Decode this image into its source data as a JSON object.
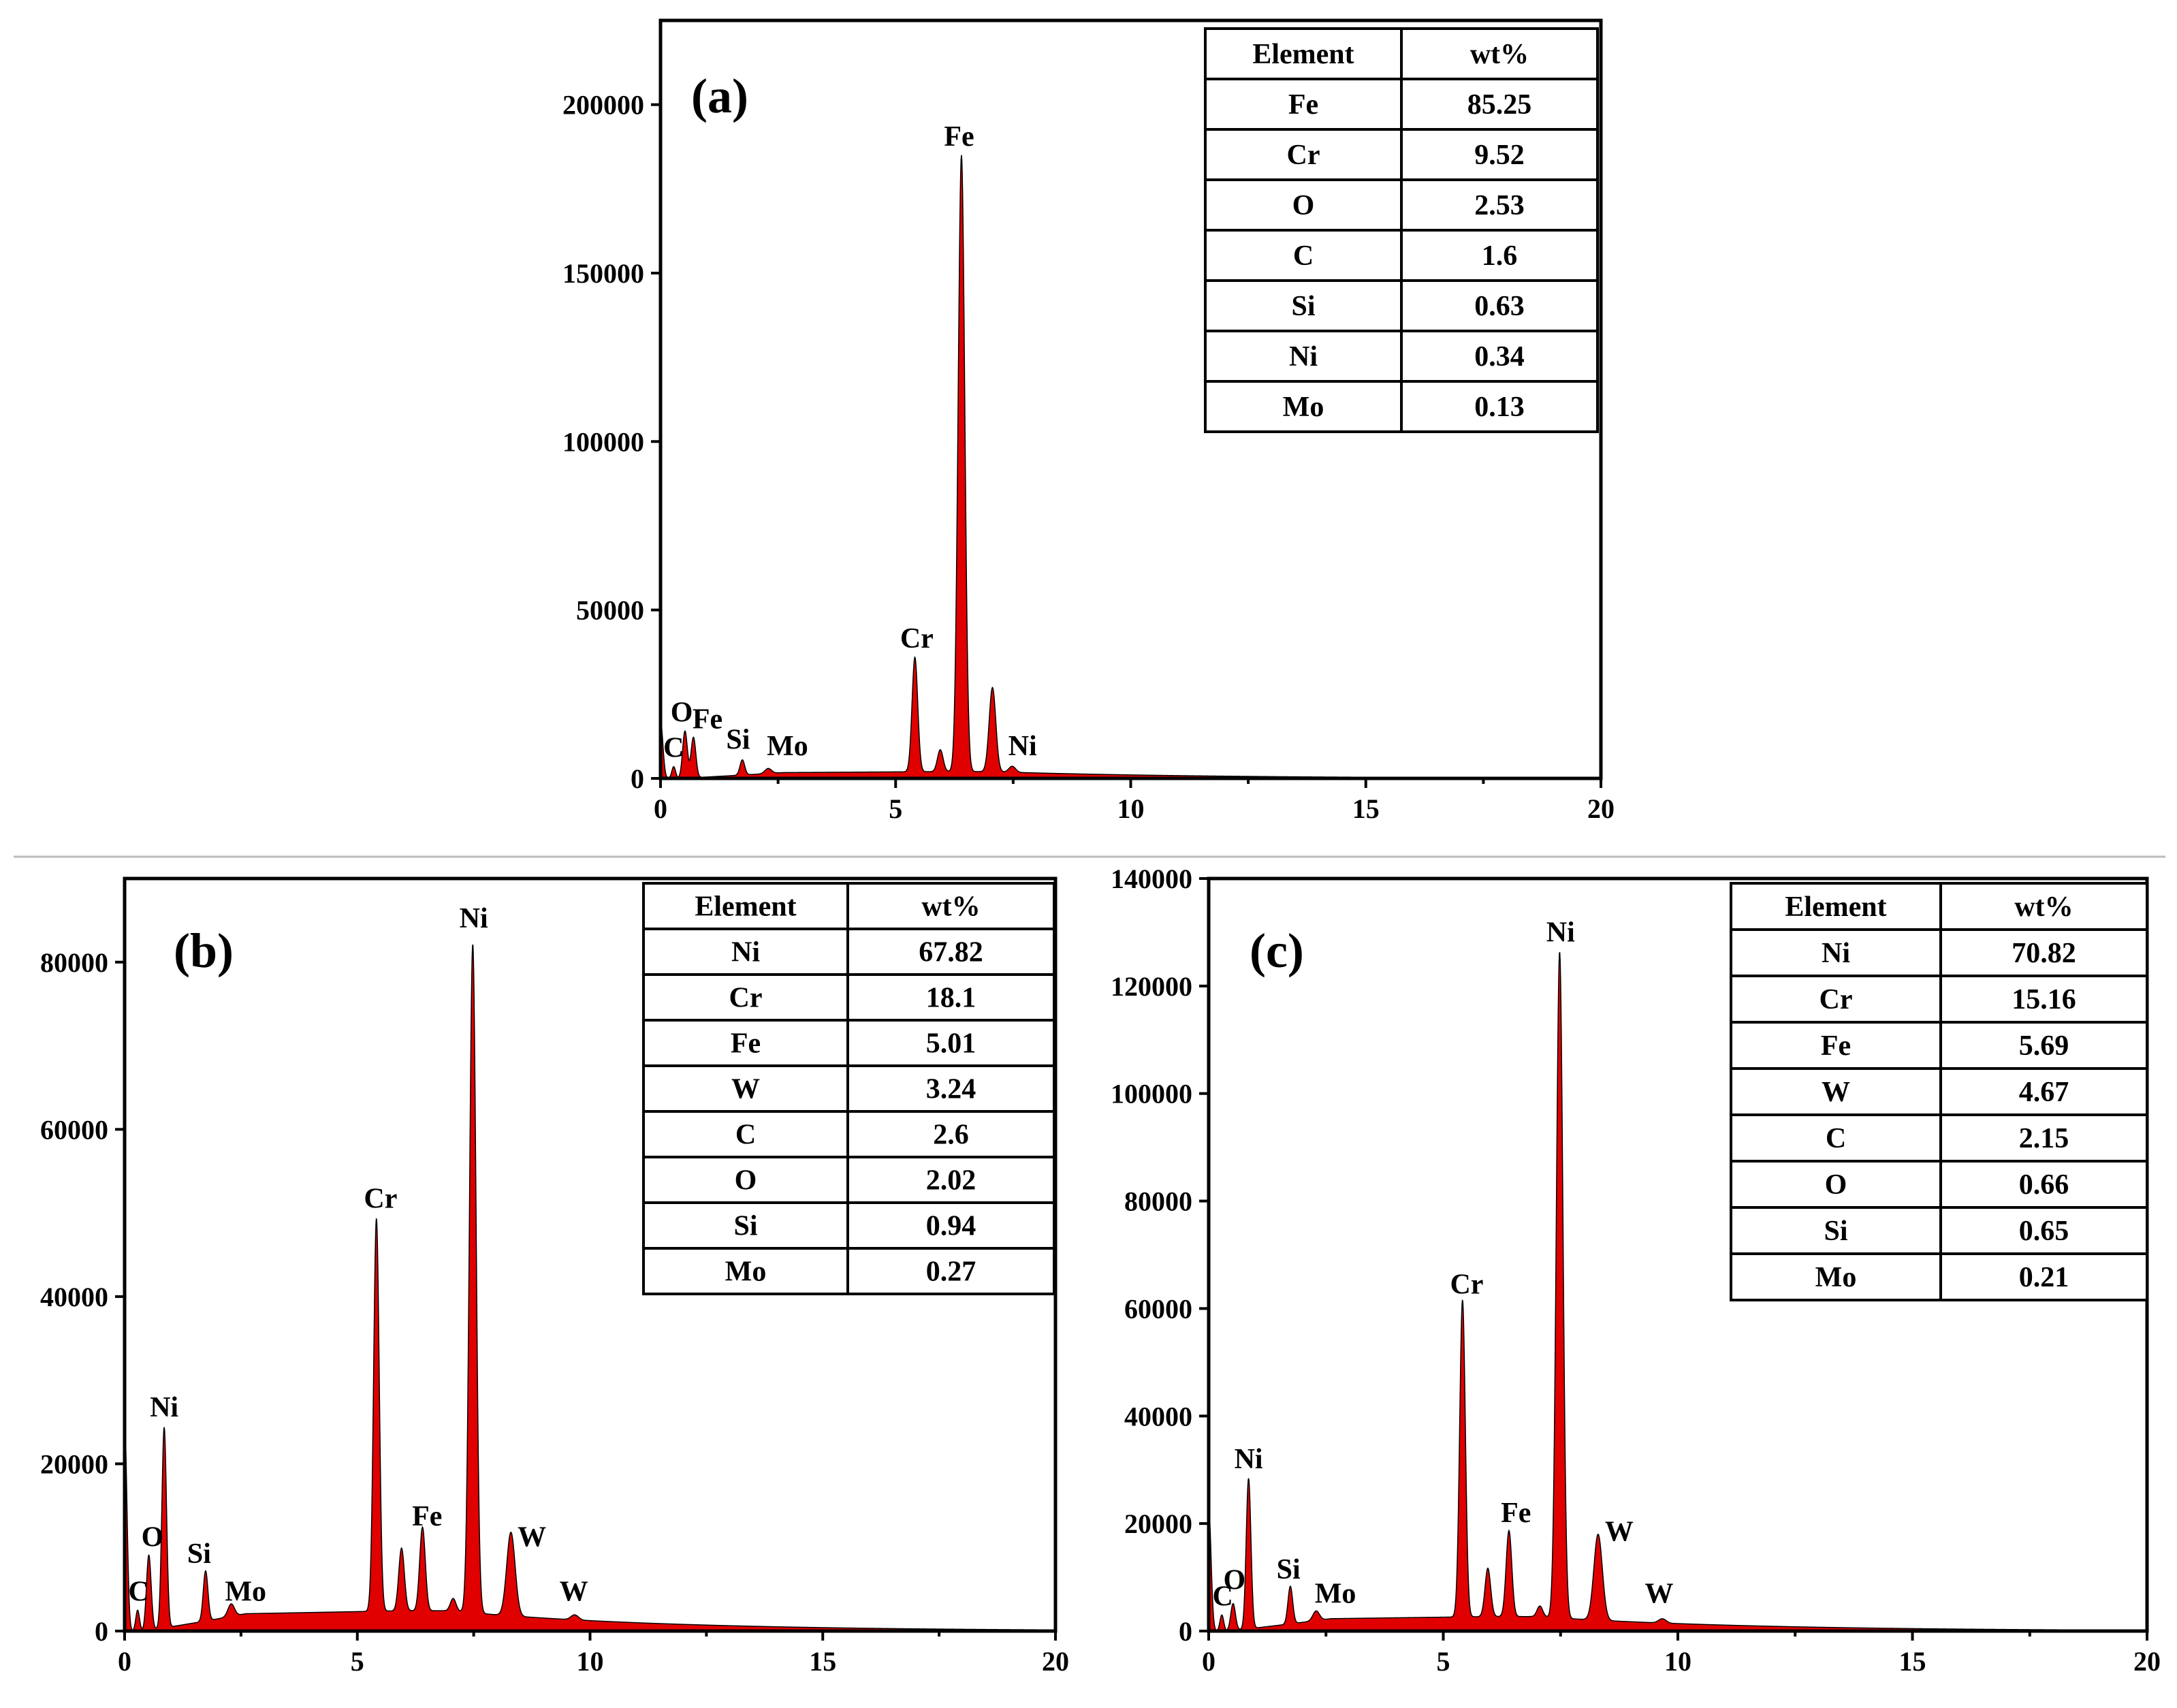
{
  "chart_data": [
    {
      "type": "area",
      "panel_label": "(a)",
      "xlim": [
        0,
        20
      ],
      "ylim": [
        0,
        225000
      ],
      "x_ticks": [
        0,
        5,
        10,
        15,
        20
      ],
      "y_ticks": [
        0,
        50000,
        100000,
        150000,
        200000
      ],
      "background": 1500,
      "fill_color": "#e00000",
      "peaks": [
        {
          "x": 0.0,
          "y": 17000,
          "w": 0.05
        },
        {
          "x": 0.28,
          "y": 3500,
          "w": 0.04
        },
        {
          "x": 0.52,
          "y": 14000,
          "w": 0.05
        },
        {
          "x": 0.7,
          "y": 12000,
          "w": 0.05
        },
        {
          "x": 1.74,
          "y": 4500,
          "w": 0.05
        },
        {
          "x": 2.29,
          "y": 1500,
          "w": 0.07
        },
        {
          "x": 5.41,
          "y": 34000,
          "w": 0.06
        },
        {
          "x": 5.95,
          "y": 6500,
          "w": 0.06
        },
        {
          "x": 6.4,
          "y": 183000,
          "w": 0.07
        },
        {
          "x": 7.06,
          "y": 25000,
          "w": 0.07
        },
        {
          "x": 7.48,
          "y": 1800,
          "w": 0.07
        }
      ],
      "peak_labels": [
        {
          "text": "C",
          "x": 0.28,
          "y": 3500
        },
        {
          "text": "O",
          "x": 0.45,
          "y": 14000
        },
        {
          "text": "Fe",
          "x": 1.0,
          "y": 12000
        },
        {
          "text": "Si",
          "x": 1.65,
          "y": 6000
        },
        {
          "text": "Mo",
          "x": 2.7,
          "y": 4000
        },
        {
          "text": "Cr",
          "x": 5.45,
          "y": 36000
        },
        {
          "text": "Fe",
          "x": 6.35,
          "y": 185000
        },
        {
          "text": "Ni",
          "x": 7.7,
          "y": 4000
        }
      ],
      "table": {
        "header": [
          "Element",
          "wt%"
        ],
        "rows": [
          [
            "Fe",
            "85.25"
          ],
          [
            "Cr",
            "9.52"
          ],
          [
            "O",
            "2.53"
          ],
          [
            "C",
            "1.6"
          ],
          [
            "Si",
            "0.63"
          ],
          [
            "Ni",
            "0.34"
          ],
          [
            "Mo",
            "0.13"
          ]
        ]
      }
    },
    {
      "type": "area",
      "panel_label": "(b)",
      "xlim": [
        0,
        20
      ],
      "ylim": [
        0,
        90000
      ],
      "x_ticks": [
        0,
        5,
        10,
        15,
        20
      ],
      "y_ticks": [
        0,
        20000,
        40000,
        60000,
        80000
      ],
      "background": 1800,
      "fill_color": "#e00000",
      "peaks": [
        {
          "x": 0.0,
          "y": 25000,
          "w": 0.05
        },
        {
          "x": 0.28,
          "y": 2500,
          "w": 0.04
        },
        {
          "x": 0.52,
          "y": 9000,
          "w": 0.05
        },
        {
          "x": 0.85,
          "y": 24000,
          "w": 0.05
        },
        {
          "x": 1.74,
          "y": 6000,
          "w": 0.05
        },
        {
          "x": 2.29,
          "y": 1500,
          "w": 0.07
        },
        {
          "x": 5.41,
          "y": 47000,
          "w": 0.06
        },
        {
          "x": 5.95,
          "y": 7500,
          "w": 0.06
        },
        {
          "x": 6.4,
          "y": 10000,
          "w": 0.06
        },
        {
          "x": 7.06,
          "y": 1500,
          "w": 0.06
        },
        {
          "x": 7.48,
          "y": 80000,
          "w": 0.07
        },
        {
          "x": 8.3,
          "y": 10000,
          "w": 0.09
        },
        {
          "x": 9.67,
          "y": 600,
          "w": 0.08
        }
      ],
      "peak_labels": [
        {
          "text": "C",
          "x": 0.3,
          "y": 2500
        },
        {
          "text": "O",
          "x": 0.6,
          "y": 9000
        },
        {
          "text": "Ni",
          "x": 0.85,
          "y": 24500
        },
        {
          "text": "Si",
          "x": 1.6,
          "y": 7000
        },
        {
          "text": "Mo",
          "x": 2.6,
          "y": 2500
        },
        {
          "text": "Cr",
          "x": 5.5,
          "y": 49500
        },
        {
          "text": "Fe",
          "x": 6.5,
          "y": 11500
        },
        {
          "text": "Ni",
          "x": 7.5,
          "y": 83000
        },
        {
          "text": "W",
          "x": 8.75,
          "y": 9000
        },
        {
          "text": "W",
          "x": 9.65,
          "y": 2500
        }
      ],
      "table": {
        "header": [
          "Element",
          "wt%"
        ],
        "rows": [
          [
            "Ni",
            "67.82"
          ],
          [
            "Cr",
            "18.1"
          ],
          [
            "Fe",
            "5.01"
          ],
          [
            "W",
            "3.24"
          ],
          [
            "C",
            "2.6"
          ],
          [
            "O",
            "2.02"
          ],
          [
            "Si",
            "0.94"
          ],
          [
            "Mo",
            "0.27"
          ]
        ]
      }
    },
    {
      "type": "area",
      "panel_label": "(c)",
      "xlim": [
        0,
        20
      ],
      "ylim": [
        0,
        140000
      ],
      "x_ticks": [
        0,
        5,
        10,
        15,
        20
      ],
      "y_ticks": [
        0,
        20000,
        40000,
        60000,
        80000,
        100000,
        120000,
        140000
      ],
      "background": 2000,
      "fill_color": "#e00000",
      "peaks": [
        {
          "x": 0.0,
          "y": 23000,
          "w": 0.05
        },
        {
          "x": 0.28,
          "y": 3000,
          "w": 0.04
        },
        {
          "x": 0.52,
          "y": 5000,
          "w": 0.05
        },
        {
          "x": 0.85,
          "y": 28000,
          "w": 0.05
        },
        {
          "x": 1.74,
          "y": 7000,
          "w": 0.05
        },
        {
          "x": 2.29,
          "y": 1800,
          "w": 0.07
        },
        {
          "x": 5.41,
          "y": 59000,
          "w": 0.06
        },
        {
          "x": 5.95,
          "y": 9000,
          "w": 0.06
        },
        {
          "x": 6.4,
          "y": 16000,
          "w": 0.06
        },
        {
          "x": 7.06,
          "y": 2000,
          "w": 0.06
        },
        {
          "x": 7.48,
          "y": 124000,
          "w": 0.07
        },
        {
          "x": 8.3,
          "y": 16000,
          "w": 0.09
        },
        {
          "x": 9.67,
          "y": 800,
          "w": 0.08
        }
      ],
      "peak_labels": [
        {
          "text": "C",
          "x": 0.3,
          "y": 3000
        },
        {
          "text": "O",
          "x": 0.55,
          "y": 6000
        },
        {
          "text": "Ni",
          "x": 0.85,
          "y": 28500
        },
        {
          "text": "Si",
          "x": 1.7,
          "y": 8000
        },
        {
          "text": "Mo",
          "x": 2.7,
          "y": 3500
        },
        {
          "text": "Cr",
          "x": 5.5,
          "y": 61000
        },
        {
          "text": "Fe",
          "x": 6.55,
          "y": 18500
        },
        {
          "text": "Ni",
          "x": 7.5,
          "y": 126500
        },
        {
          "text": "W",
          "x": 8.75,
          "y": 15000
        },
        {
          "text": "W",
          "x": 9.6,
          "y": 3500
        }
      ],
      "table": {
        "header": [
          "Element",
          "wt%"
        ],
        "rows": [
          [
            "Ni",
            "70.82"
          ],
          [
            "Cr",
            "15.16"
          ],
          [
            "Fe",
            "5.69"
          ],
          [
            "W",
            "4.67"
          ],
          [
            "C",
            "2.15"
          ],
          [
            "O",
            "0.66"
          ],
          [
            "Si",
            "0.65"
          ],
          [
            "Mo",
            "0.21"
          ]
        ]
      }
    }
  ]
}
